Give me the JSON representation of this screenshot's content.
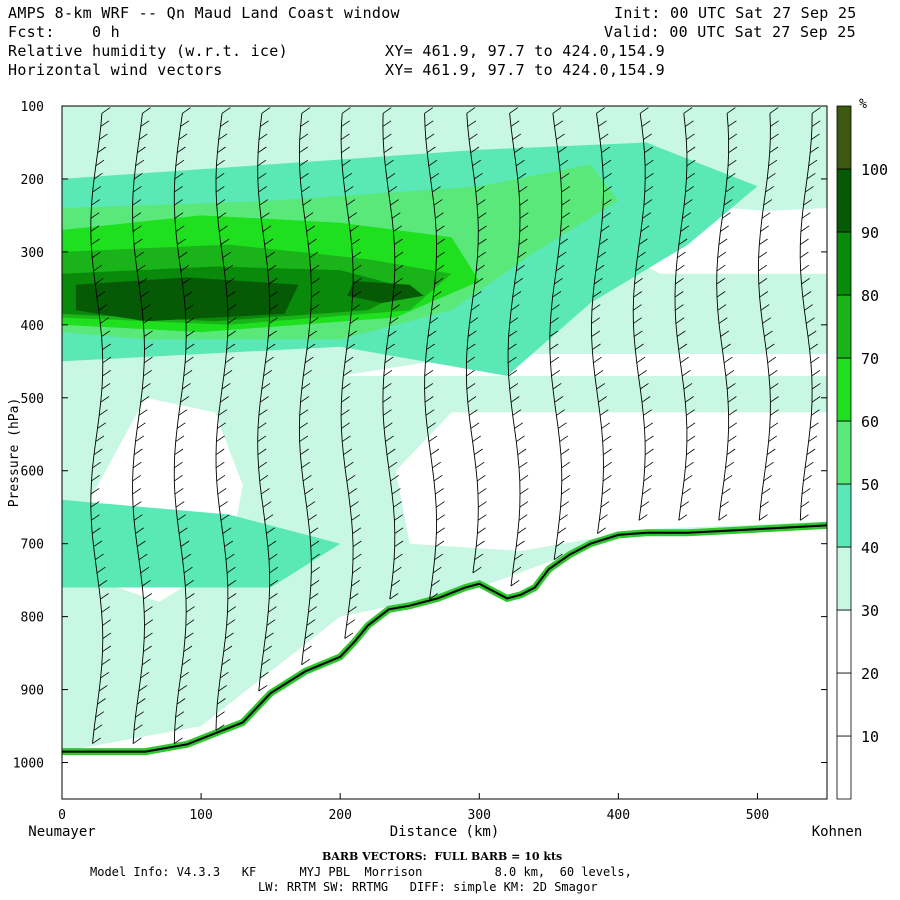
{
  "header": {
    "title": "AMPS 8-km WRF -- Qn Maud Land Coast window",
    "init": "Init: 00 UTC Sat 27 Sep 25",
    "fcst": "Fcst:    0 h",
    "valid": "Valid: 00 UTC Sat 27 Sep 25",
    "field1": "Relative humidity (w.r.t. ice)",
    "field1_xy": "XY= 461.9, 97.7 to 424.0,154.9",
    "field2": "Horizontal wind vectors",
    "field2_xy": "XY= 461.9, 97.7 to 424.0,154.9"
  },
  "footer": {
    "barb_note": "BARB VECTORS:  FULL BARB = 10 kts",
    "model_info": "Model Info: V4.3.3   KF      MYJ PBL  Morrison          8.0 km,  60 levels,",
    "model_info2": "LW: RRTM SW: RRTMG   DIFF: simple KM: 2D Smagor"
  },
  "chart_data": {
    "type": "heatmap",
    "title": "Relative humidity (w.r.t. ice) cross-section with horizontal wind vectors",
    "xlabel": "Distance (km)",
    "ylabel": "Pressure (hPa)",
    "xlim": [
      0,
      550
    ],
    "ylim": [
      1050,
      100
    ],
    "x_ticks": [
      0,
      100,
      200,
      300,
      400,
      500
    ],
    "y_ticks": [
      100,
      200,
      300,
      400,
      500,
      600,
      700,
      800,
      900,
      1000
    ],
    "x_endpoint_labels": {
      "left": "Neumayer",
      "right": "Kohnen"
    },
    "colorbar": {
      "unit": "%",
      "levels": [
        10,
        20,
        30,
        40,
        50,
        60,
        70,
        80,
        90,
        100
      ],
      "colors": [
        "#ffffff",
        "#ffffff",
        "#ffffff",
        "#c8f7e3",
        "#5ae8b6",
        "#5ae87b",
        "#1ee01e",
        "#1ab41a",
        "#0a8a0a",
        "#065a06",
        "#3c5a10"
      ]
    },
    "terrain_pressure": {
      "x": [
        0,
        60,
        90,
        130,
        150,
        175,
        200,
        210,
        220,
        235,
        250,
        270,
        290,
        300,
        310,
        320,
        330,
        340,
        350,
        365,
        380,
        400,
        420,
        450,
        500,
        550
      ],
      "p": [
        985,
        985,
        975,
        945,
        905,
        875,
        855,
        835,
        812,
        790,
        785,
        775,
        760,
        755,
        765,
        775,
        770,
        760,
        735,
        715,
        700,
        688,
        685,
        685,
        680,
        675
      ]
    },
    "rh_regions": [
      {
        "level": "30-40",
        "desc": "broad moist band across upper and lower troposphere"
      },
      {
        "level": "40-50",
        "desc": "layer 120-500 hPa and lower-left layers"
      },
      {
        "level": "50-60",
        "desc": "layer 230-460 hPa"
      },
      {
        "level": "60-70",
        "desc": "band 270-430 hPa, 0-310 km"
      },
      {
        "level": "70-80",
        "desc": "band 300-400 hPa, 0-250 km"
      },
      {
        "level": "80-90",
        "desc": "core near 350-400 hPa, 0-230 km"
      }
    ],
    "barb_note": "BARB VECTORS: FULL BARB = 10 kts"
  }
}
